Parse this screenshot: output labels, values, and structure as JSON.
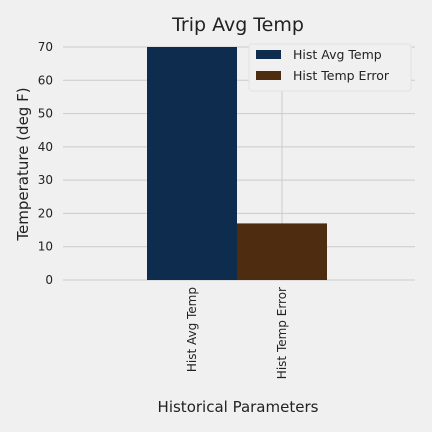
{
  "chart_data": {
    "type": "bar",
    "title": "Trip Avg Temp",
    "xlabel": "Historical Parameters",
    "ylabel": "Temperature (deg F)",
    "categories": [
      "Hist Avg Temp",
      "Hist Temp Error"
    ],
    "series": [
      {
        "name": "Hist Avg Temp",
        "values": [
          70,
          null
        ],
        "color": "#0e2c4e"
      },
      {
        "name": "Hist Temp Error",
        "values": [
          null,
          17
        ],
        "color": "#4e2c10"
      }
    ],
    "yticks": [
      "0",
      "10",
      "20",
      "30",
      "40",
      "50",
      "60",
      "70"
    ],
    "ylim": [
      0,
      70
    ],
    "grid": true,
    "legend_position": "top-right",
    "background": "#f0f0f0"
  }
}
